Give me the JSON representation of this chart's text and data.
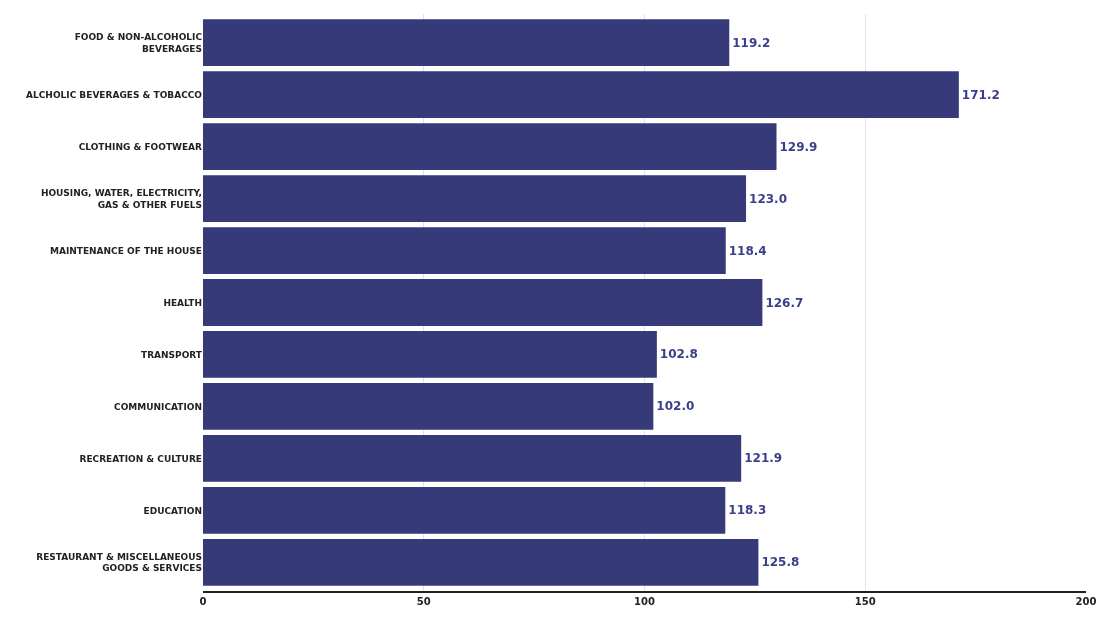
{
  "chart_data": {
    "type": "bar",
    "orientation": "horizontal",
    "categories": [
      "FOOD & NON-ALCOHOLIC BEVERAGES",
      "ALCHOLIC BEVERAGES & TOBACCO",
      "CLOTHING & FOOTWEAR",
      "HOUSING, WATER, ELECTRICITY, GAS & OTHER FUELS",
      "MAINTENANCE OF THE HOUSE",
      "HEALTH",
      "TRANSPORT",
      "COMMUNICATION",
      "RECREATION & CULTURE",
      "EDUCATION",
      "RESTAURANT & MISCELLANEOUS GOODS & SERVICES"
    ],
    "values": [
      119.2,
      171.2,
      129.9,
      123.0,
      118.4,
      126.7,
      102.8,
      102.0,
      121.9,
      118.3,
      125.8
    ],
    "value_labels": [
      "119.2",
      "171.2",
      "129.9",
      "123.0",
      "118.4",
      "126.7",
      "102.8",
      "102.0",
      "121.9",
      "118.3",
      "125.8"
    ],
    "color": "#363a78",
    "xlim": [
      0,
      200
    ],
    "xticks": [
      0,
      50,
      100,
      150,
      200
    ],
    "grid": "x"
  }
}
